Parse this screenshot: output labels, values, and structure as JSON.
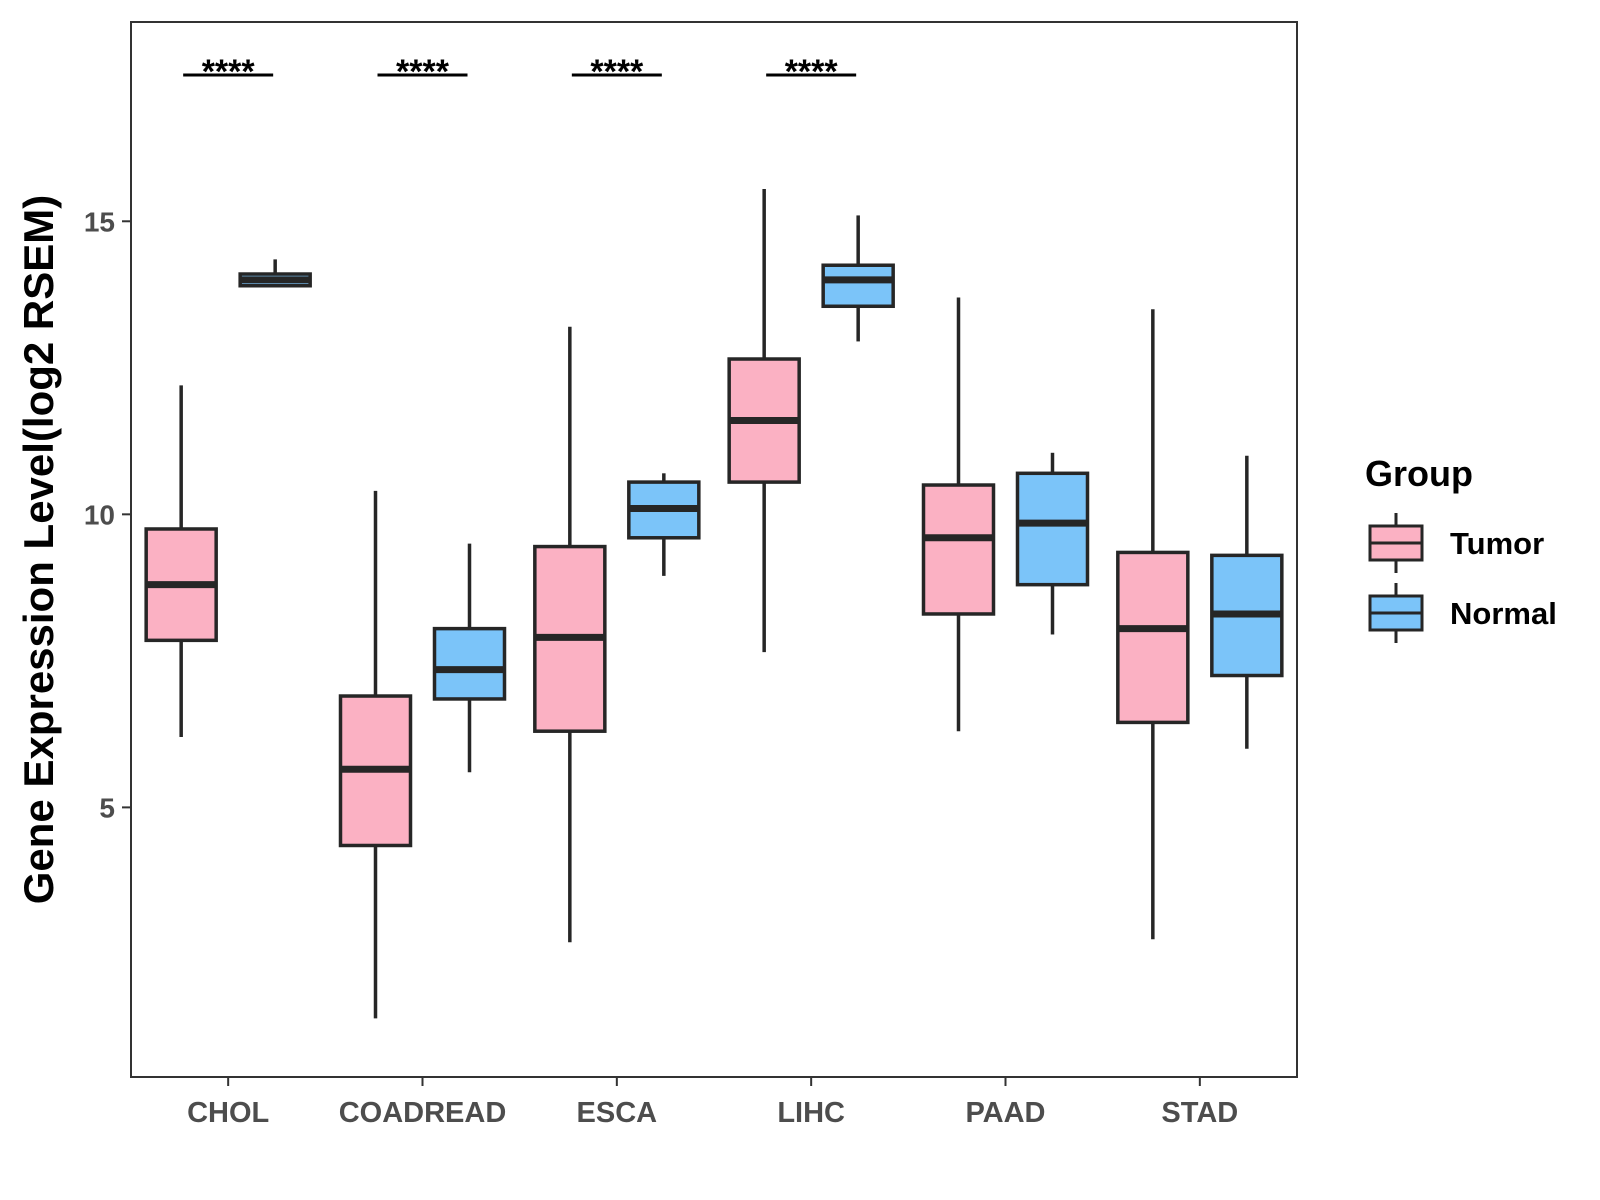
{
  "chart_data": {
    "type": "boxplot",
    "title": "",
    "xlabel": "",
    "ylabel": "Gene Expression Level(log2 RSEM)",
    "ylim": [
      0.4,
      18.4
    ],
    "yticks": [
      5,
      10,
      15
    ],
    "categories": [
      "CHOL",
      "COADREAD",
      "ESCA",
      "LIHC",
      "PAAD",
      "STAD"
    ],
    "groups": [
      "Tumor",
      "Normal"
    ],
    "legend": {
      "title": "Group",
      "position": "right",
      "items": [
        {
          "label": "Tumor",
          "color": "#FBB1C3"
        },
        {
          "label": "Normal",
          "color": "#7BC4F9"
        }
      ]
    },
    "series": [
      {
        "name": "Tumor",
        "color": "#FBB1C3",
        "boxes": [
          {
            "category": "CHOL",
            "min": 6.2,
            "q1": 7.85,
            "median": 8.8,
            "q3": 9.75,
            "max": 12.2
          },
          {
            "category": "COADREAD",
            "min": 1.4,
            "q1": 4.35,
            "median": 5.65,
            "q3": 6.9,
            "max": 10.4
          },
          {
            "category": "ESCA",
            "min": 2.7,
            "q1": 6.3,
            "median": 7.9,
            "q3": 9.45,
            "max": 13.2
          },
          {
            "category": "LIHC",
            "min": 7.65,
            "q1": 10.55,
            "median": 11.6,
            "q3": 12.65,
            "max": 15.55
          },
          {
            "category": "PAAD",
            "min": 6.3,
            "q1": 8.3,
            "median": 9.6,
            "q3": 10.5,
            "max": 13.7
          },
          {
            "category": "STAD",
            "min": 2.75,
            "q1": 6.45,
            "median": 8.05,
            "q3": 9.35,
            "max": 13.5
          }
        ]
      },
      {
        "name": "Normal",
        "color": "#7BC4F9",
        "boxes": [
          {
            "category": "CHOL",
            "min": 13.9,
            "q1": 13.9,
            "median": 14.0,
            "q3": 14.1,
            "max": 14.35
          },
          {
            "category": "COADREAD",
            "min": 5.6,
            "q1": 6.85,
            "median": 7.35,
            "q3": 8.05,
            "max": 9.5
          },
          {
            "category": "ESCA",
            "min": 8.95,
            "q1": 9.6,
            "median": 10.1,
            "q3": 10.55,
            "max": 10.7
          },
          {
            "category": "LIHC",
            "min": 12.95,
            "q1": 13.55,
            "median": 14.0,
            "q3": 14.25,
            "max": 15.1
          },
          {
            "category": "PAAD",
            "min": 7.95,
            "q1": 8.8,
            "median": 9.85,
            "q3": 10.7,
            "max": 11.05
          },
          {
            "category": "STAD",
            "min": 6.0,
            "q1": 7.25,
            "median": 8.3,
            "q3": 9.3,
            "max": 11.0
          }
        ]
      }
    ],
    "significance": [
      {
        "category": "CHOL",
        "label": "****"
      },
      {
        "category": "COADREAD",
        "label": "****"
      },
      {
        "category": "ESCA",
        "label": "****"
      },
      {
        "category": "LIHC",
        "label": "****"
      }
    ],
    "grid": false,
    "box_outline_color": "#262626"
  }
}
